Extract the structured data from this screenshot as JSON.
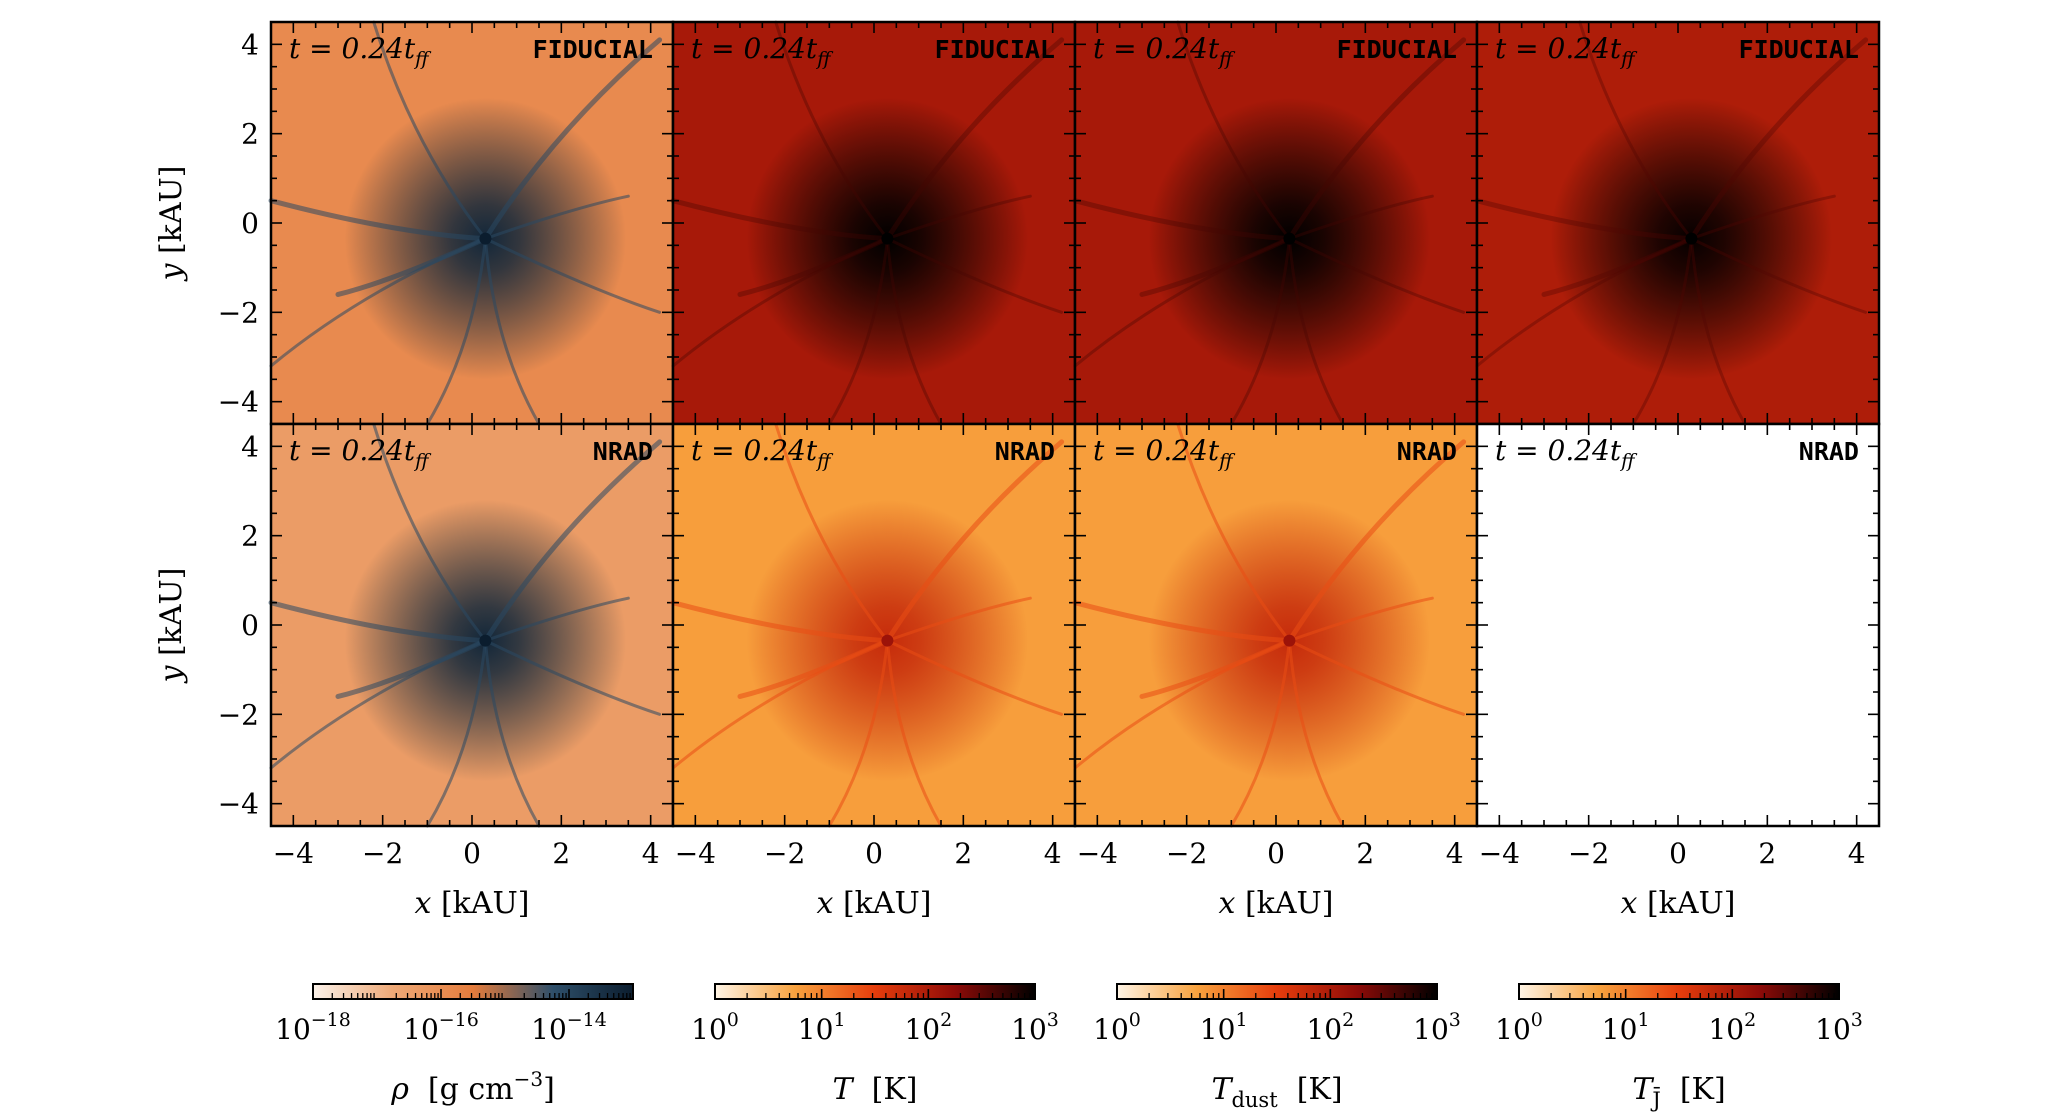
{
  "chart_data": {
    "type": "heatmap",
    "layout": {
      "rows": 2,
      "cols": 4,
      "shared_axes": true
    },
    "xlabel_var": "x",
    "xlabel_unit": "[kAU]",
    "ylabel_var": "y",
    "ylabel_unit": "[kAU]",
    "xlim": [
      -4.5,
      4.5
    ],
    "ylim": [
      -4.5,
      4.5
    ],
    "ticks": [
      -4,
      -2,
      0,
      2,
      4
    ],
    "tick_labels": [
      "−4",
      "−2",
      "0",
      "2",
      "4"
    ],
    "time_prefix": "t = 0.24t",
    "time_sub": "ff",
    "center": [
      0.3,
      -0.35
    ],
    "rows": [
      {
        "label": "FIDUCIAL",
        "panels": [
          {
            "quantity": "rho",
            "cmap": "density",
            "level": 0.42,
            "empty": false
          },
          {
            "quantity": "T",
            "cmap": "temperature",
            "level": 0.68,
            "empty": false
          },
          {
            "quantity": "T_dust",
            "cmap": "temperature",
            "level": 0.68,
            "empty": false
          },
          {
            "quantity": "T_J",
            "cmap": "temperature",
            "level": 0.66,
            "empty": false
          }
        ]
      },
      {
        "label": "NRAD",
        "panels": [
          {
            "quantity": "rho",
            "cmap": "density",
            "level": 0.32,
            "empty": false
          },
          {
            "quantity": "T",
            "cmap": "temperature",
            "level": 0.26,
            "empty": false
          },
          {
            "quantity": "T_dust",
            "cmap": "temperature",
            "level": 0.26,
            "empty": false
          },
          {
            "quantity": "T_J",
            "cmap": "temperature",
            "level": 0,
            "empty": true
          }
        ]
      }
    ],
    "colorbars": [
      {
        "quantity": "rho",
        "scale": "log",
        "range": [
          1e-18,
          1e-13
        ],
        "tick_labels": [
          {
            "value": 1e-18,
            "base": "10",
            "exp": "−18"
          },
          {
            "value": 1e-16,
            "base": "10",
            "exp": "−16"
          },
          {
            "value": 1e-14,
            "base": "10",
            "exp": "−14"
          }
        ],
        "label_var": "ρ",
        "label_unit": "[g cm",
        "label_unit_exp": "−3",
        "label_unit_close": "]",
        "stops": [
          "#fbf2ea",
          "#eea977",
          "#e57c3c",
          "#2e4f6a",
          "#0b1d2e"
        ]
      },
      {
        "quantity": "T",
        "scale": "log",
        "range": [
          1,
          1000
        ],
        "tick_labels": [
          {
            "value": 1,
            "base": "10",
            "exp": "0"
          },
          {
            "value": 10,
            "base": "10",
            "exp": "1"
          },
          {
            "value": 100,
            "base": "10",
            "exp": "2"
          },
          {
            "value": 1000,
            "base": "10",
            "exp": "3"
          }
        ],
        "label_var": "T",
        "label_sub": "",
        "label_unit": "[K]",
        "stops": [
          "#fff5e6",
          "#f8a23e",
          "#e63d0c",
          "#8e0b08",
          "#000000"
        ]
      },
      {
        "quantity": "T_dust",
        "scale": "log",
        "range": [
          1,
          1000
        ],
        "tick_labels": [
          {
            "value": 1,
            "base": "10",
            "exp": "0"
          },
          {
            "value": 10,
            "base": "10",
            "exp": "1"
          },
          {
            "value": 100,
            "base": "10",
            "exp": "2"
          },
          {
            "value": 1000,
            "base": "10",
            "exp": "3"
          }
        ],
        "label_var": "T",
        "label_sub": "dust",
        "label_unit": "[K]",
        "stops": [
          "#fff5e6",
          "#f8a23e",
          "#e63d0c",
          "#8e0b08",
          "#000000"
        ]
      },
      {
        "quantity": "T_J",
        "scale": "log",
        "range": [
          1,
          1000
        ],
        "tick_labels": [
          {
            "value": 1,
            "base": "10",
            "exp": "0"
          },
          {
            "value": 10,
            "base": "10",
            "exp": "1"
          },
          {
            "value": 100,
            "base": "10",
            "exp": "2"
          },
          {
            "value": 1000,
            "base": "10",
            "exp": "3"
          }
        ],
        "label_var": "T",
        "label_sub": "J̄",
        "label_unit": "[K]",
        "stops": [
          "#fff5e6",
          "#f8a23e",
          "#e63d0c",
          "#8e0b08",
          "#000000"
        ]
      }
    ]
  }
}
